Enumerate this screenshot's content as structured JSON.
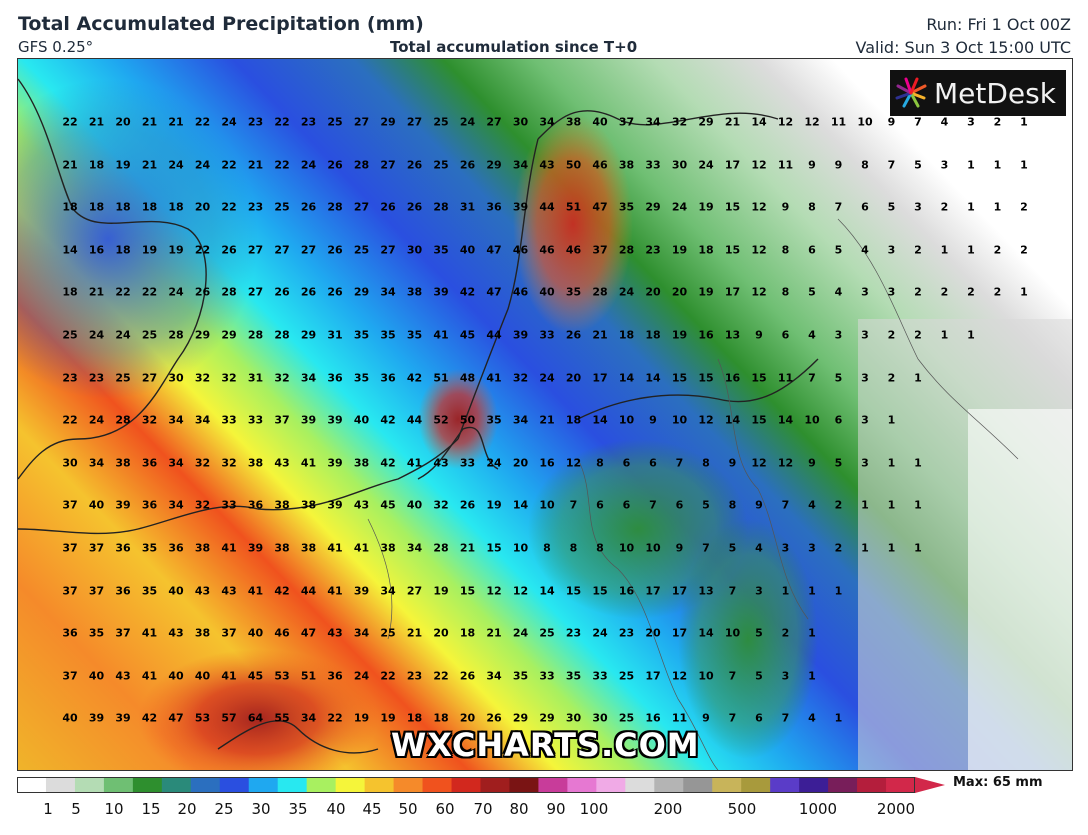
{
  "header": {
    "title": "Total Accumulated Precipitation (mm)",
    "model": "GFS 0.25°",
    "center_label": "Total accumulation since T+0",
    "run": "Run: Fri 1 Oct 00Z",
    "valid": "Valid: Sun 3 Oct 15:00 UTC"
  },
  "logo": {
    "text": "MetDesk"
  },
  "watermark": "WXCHARTS.COM",
  "colorbar": {
    "labels": [
      "1",
      "5",
      "10",
      "15",
      "20",
      "25",
      "30",
      "35",
      "40",
      "45",
      "50",
      "60",
      "70",
      "80",
      "90",
      "100",
      "200",
      "500",
      "1000",
      "2000"
    ],
    "max_label": "Max: 65 mm",
    "stops": [
      "#ffffff",
      "#dcdcdc",
      "#b4dcb4",
      "#6fbf73",
      "#2e8f2e",
      "#2a8a7a",
      "#2b6fbf",
      "#2a4fe0",
      "#1fa8f0",
      "#28e8f0",
      "#a8f060",
      "#f5f53a",
      "#f5c32e",
      "#f58a2a",
      "#f0521e",
      "#d2281e",
      "#a01e1e",
      "#7a1414",
      "#c83c9a",
      "#e678d2",
      "#f0aae6",
      "#dcdcdc",
      "#b4b4b4",
      "#969696",
      "#c8b45a",
      "#a89a3c",
      "#5a3cc8",
      "#3c1e96",
      "#781e5a",
      "#b41e3c",
      "#d2284a"
    ]
  },
  "grid_values": [
    [
      22,
      21,
      20,
      21,
      21,
      22,
      24,
      23,
      22,
      23,
      25,
      27,
      29,
      27,
      25,
      24,
      27,
      30,
      34,
      38,
      40,
      37,
      34,
      32,
      29,
      21,
      14,
      12,
      12,
      11,
      10,
      9,
      7,
      4,
      3,
      2,
      1
    ],
    [
      21,
      18,
      19,
      21,
      24,
      24,
      22,
      21,
      22,
      24,
      26,
      28,
      27,
      26,
      25,
      26,
      29,
      34,
      43,
      50,
      46,
      38,
      33,
      30,
      24,
      17,
      12,
      11,
      9,
      9,
      8,
      7,
      5,
      3,
      1,
      1,
      1
    ],
    [
      18,
      18,
      18,
      18,
      18,
      20,
      22,
      23,
      25,
      26,
      28,
      27,
      26,
      26,
      28,
      31,
      36,
      39,
      44,
      51,
      47,
      35,
      29,
      24,
      19,
      15,
      12,
      9,
      8,
      7,
      6,
      5,
      3,
      2,
      1,
      1,
      2
    ],
    [
      14,
      16,
      18,
      19,
      19,
      22,
      26,
      27,
      27,
      27,
      26,
      25,
      27,
      30,
      35,
      40,
      47,
      46,
      46,
      46,
      37,
      28,
      23,
      19,
      18,
      15,
      12,
      8,
      6,
      5,
      4,
      3,
      2,
      1,
      1,
      2,
      2
    ],
    [
      18,
      21,
      22,
      22,
      24,
      26,
      28,
      27,
      26,
      26,
      26,
      29,
      34,
      38,
      39,
      42,
      47,
      46,
      40,
      35,
      28,
      24,
      20,
      20,
      19,
      17,
      12,
      8,
      5,
      4,
      3,
      3,
      2,
      2,
      2,
      2,
      1
    ],
    [
      25,
      24,
      24,
      25,
      28,
      29,
      29,
      28,
      28,
      29,
      31,
      35,
      35,
      35,
      41,
      45,
      44,
      39,
      33,
      26,
      21,
      18,
      18,
      19,
      16,
      13,
      9,
      6,
      4,
      3,
      3,
      2,
      2,
      1,
      1
    ],
    [
      23,
      23,
      25,
      27,
      30,
      32,
      32,
      31,
      32,
      34,
      36,
      35,
      36,
      42,
      51,
      48,
      41,
      32,
      24,
      20,
      17,
      14,
      14,
      15,
      15,
      16,
      15,
      11,
      7,
      5,
      3,
      2,
      1
    ],
    [
      22,
      24,
      28,
      32,
      34,
      34,
      33,
      33,
      37,
      39,
      39,
      40,
      42,
      44,
      52,
      50,
      35,
      34,
      21,
      18,
      14,
      10,
      9,
      10,
      12,
      14,
      15,
      14,
      10,
      6,
      3,
      1
    ],
    [
      30,
      34,
      38,
      36,
      34,
      32,
      32,
      38,
      43,
      41,
      39,
      38,
      42,
      41,
      43,
      33,
      24,
      20,
      16,
      12,
      8,
      6,
      6,
      7,
      8,
      9,
      12,
      12,
      9,
      5,
      3,
      1,
      1
    ],
    [
      37,
      40,
      39,
      36,
      34,
      32,
      33,
      36,
      38,
      38,
      39,
      43,
      45,
      40,
      32,
      26,
      19,
      14,
      10,
      7,
      6,
      6,
      7,
      6,
      5,
      8,
      9,
      7,
      4,
      2,
      1,
      1,
      1
    ],
    [
      37,
      37,
      36,
      35,
      36,
      38,
      41,
      39,
      38,
      38,
      41,
      41,
      38,
      34,
      28,
      21,
      15,
      10,
      8,
      8,
      8,
      10,
      10,
      9,
      7,
      5,
      4,
      3,
      3,
      2,
      1,
      1,
      1
    ],
    [
      37,
      37,
      36,
      35,
      40,
      43,
      43,
      41,
      42,
      44,
      41,
      39,
      34,
      27,
      19,
      15,
      12,
      12,
      14,
      15,
      15,
      16,
      17,
      17,
      13,
      7,
      3,
      1,
      1,
      1
    ],
    [
      36,
      35,
      37,
      41,
      43,
      38,
      37,
      40,
      46,
      47,
      43,
      34,
      25,
      21,
      20,
      18,
      21,
      24,
      25,
      23,
      24,
      23,
      20,
      17,
      14,
      10,
      5,
      2,
      1
    ],
    [
      37,
      40,
      43,
      41,
      40,
      40,
      41,
      45,
      53,
      51,
      36,
      24,
      22,
      23,
      22,
      26,
      34,
      35,
      33,
      35,
      33,
      25,
      17,
      12,
      10,
      7,
      5,
      3,
      1
    ],
    [
      40,
      39,
      39,
      42,
      47,
      53,
      57,
      64,
      55,
      34,
      22,
      19,
      19,
      18,
      18,
      20,
      26,
      29,
      29,
      30,
      30,
      25,
      16,
      11,
      9,
      7,
      6,
      7,
      4,
      1
    ]
  ]
}
